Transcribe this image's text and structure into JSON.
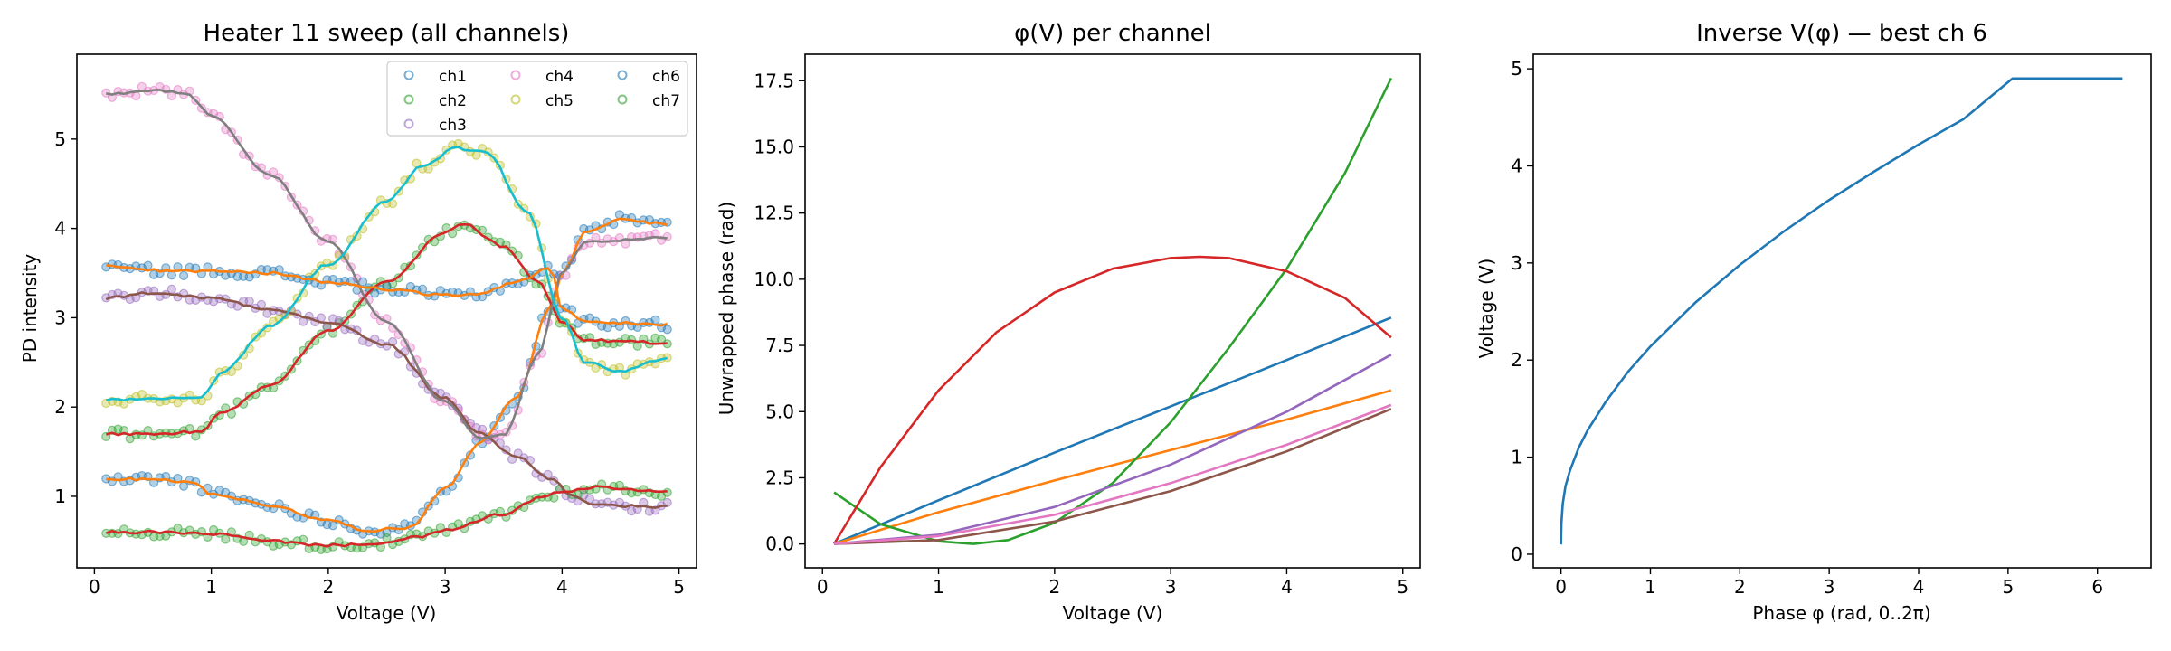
{
  "chart_data": [
    {
      "type": "scatter",
      "title": "Heater 11 sweep (all channels)",
      "xlabel": "Voltage (V)",
      "ylabel": "PD intensity",
      "xlim": [
        -0.15,
        5.15
      ],
      "ylim": [
        0.2,
        5.95
      ],
      "xticks": [
        0,
        1,
        2,
        3,
        4,
        5
      ],
      "yticks": [
        1,
        2,
        3,
        4,
        5
      ],
      "grid": false,
      "legend": {
        "position": "top-right",
        "columns": 3,
        "marker": "open-circle"
      },
      "palette": [
        "#1f77b4",
        "#ff7f0e",
        "#2ca02c",
        "#d62728",
        "#9467bd",
        "#8c564b",
        "#e377c2",
        "#7f7f7f",
        "#bcbd22",
        "#17becf"
      ],
      "x_range": [
        0.1,
        4.9
      ],
      "series": [
        {
          "name": "ch1",
          "color": "#1f77b4",
          "curve": [
            [
              0.1,
              1.18
            ],
            [
              0.5,
              1.2
            ],
            [
              0.85,
              1.15
            ],
            [
              1.0,
              1.03
            ],
            [
              1.5,
              0.9
            ],
            [
              2.0,
              0.73
            ],
            [
              2.35,
              0.62
            ],
            [
              2.7,
              0.65
            ],
            [
              3.0,
              1.1
            ],
            [
              3.3,
              1.6
            ],
            [
              3.6,
              2.1
            ],
            [
              3.9,
              3.1
            ],
            [
              4.0,
              3.5
            ],
            [
              4.2,
              3.95
            ],
            [
              4.5,
              4.1
            ],
            [
              4.9,
              4.05
            ]
          ]
        },
        {
          "name": "ch2",
          "color": "#2ca02c",
          "curve": [
            [
              0.1,
              1.7
            ],
            [
              0.5,
              1.7
            ],
            [
              0.9,
              1.72
            ],
            [
              1.1,
              1.95
            ],
            [
              1.5,
              2.25
            ],
            [
              2.0,
              2.85
            ],
            [
              2.5,
              3.4
            ],
            [
              3.0,
              3.95
            ],
            [
              3.15,
              4.05
            ],
            [
              3.5,
              3.8
            ],
            [
              3.8,
              3.4
            ],
            [
              4.0,
              2.95
            ],
            [
              4.2,
              2.75
            ],
            [
              4.9,
              2.72
            ]
          ]
        },
        {
          "name": "ch3",
          "color": "#9467bd",
          "curve": [
            [
              0.1,
              3.22
            ],
            [
              0.5,
              3.28
            ],
            [
              1.0,
              3.22
            ],
            [
              1.5,
              3.1
            ],
            [
              2.0,
              2.95
            ],
            [
              2.5,
              2.7
            ],
            [
              3.0,
              2.1
            ],
            [
              3.3,
              1.7
            ],
            [
              3.6,
              1.45
            ],
            [
              3.9,
              1.2
            ],
            [
              4.1,
              1.0
            ],
            [
              4.3,
              0.9
            ],
            [
              4.9,
              0.88
            ]
          ]
        },
        {
          "name": "ch4",
          "color": "#e377c2",
          "curve": [
            [
              0.1,
              5.5
            ],
            [
              0.5,
              5.55
            ],
            [
              0.8,
              5.5
            ],
            [
              1.0,
              5.25
            ],
            [
              1.5,
              4.6
            ],
            [
              2.0,
              3.85
            ],
            [
              2.5,
              2.95
            ],
            [
              3.0,
              2.05
            ],
            [
              3.3,
              1.65
            ],
            [
              3.5,
              1.68
            ],
            [
              3.8,
              2.6
            ],
            [
              4.0,
              3.5
            ],
            [
              4.2,
              3.85
            ],
            [
              4.9,
              3.9
            ]
          ]
        },
        {
          "name": "ch5",
          "color": "#bcbd22",
          "curve": [
            [
              0.1,
              2.08
            ],
            [
              0.5,
              2.1
            ],
            [
              0.9,
              2.1
            ],
            [
              1.1,
              2.4
            ],
            [
              1.5,
              2.9
            ],
            [
              2.0,
              3.6
            ],
            [
              2.5,
              4.3
            ],
            [
              2.8,
              4.7
            ],
            [
              3.1,
              4.9
            ],
            [
              3.35,
              4.85
            ],
            [
              3.7,
              4.2
            ],
            [
              4.0,
              3.0
            ],
            [
              4.2,
              2.5
            ],
            [
              4.5,
              2.4
            ],
            [
              4.9,
              2.55
            ]
          ]
        },
        {
          "name": "ch6",
          "color": "#1f77b4",
          "curve": [
            [
              0.1,
              3.58
            ],
            [
              0.5,
              3.53
            ],
            [
              1.0,
              3.52
            ],
            [
              1.5,
              3.5
            ],
            [
              2.0,
              3.4
            ],
            [
              2.5,
              3.32
            ],
            [
              3.0,
              3.25
            ],
            [
              3.3,
              3.27
            ],
            [
              3.6,
              3.4
            ],
            [
              3.9,
              3.55
            ],
            [
              4.0,
              3.1
            ],
            [
              4.2,
              2.95
            ],
            [
              4.9,
              2.92
            ]
          ]
        },
        {
          "name": "ch7",
          "color": "#2ca02c",
          "curve": [
            [
              0.1,
              0.6
            ],
            [
              0.5,
              0.6
            ],
            [
              1.0,
              0.58
            ],
            [
              1.5,
              0.5
            ],
            [
              2.0,
              0.45
            ],
            [
              2.5,
              0.48
            ],
            [
              2.8,
              0.55
            ],
            [
              3.0,
              0.62
            ],
            [
              3.5,
              0.8
            ],
            [
              3.8,
              0.98
            ],
            [
              4.0,
              1.05
            ],
            [
              4.3,
              1.1
            ],
            [
              4.9,
              1.05
            ]
          ]
        }
      ],
      "fit_colors": [
        "#ff7f0e",
        "#d62728",
        "#8c564b",
        "#7f7f7f",
        "#17becf",
        "#ff7f0e",
        "#d62728"
      ]
    },
    {
      "type": "line",
      "title": "φ(V) per channel",
      "xlabel": "Voltage (V)",
      "ylabel": "Unwrapped phase (rad)",
      "xlim": [
        -0.15,
        5.15
      ],
      "ylim": [
        -0.9,
        18.5
      ],
      "xticks": [
        0,
        1,
        2,
        3,
        4,
        5
      ],
      "yticks": [
        0.0,
        2.5,
        5.0,
        7.5,
        10.0,
        12.5,
        15.0,
        17.5
      ],
      "grid": false,
      "series": [
        {
          "color": "#1f77b4",
          "x": [
            0.1,
            1.0,
            2.0,
            3.0,
            4.0,
            4.9
          ],
          "y": [
            0.0,
            1.65,
            3.45,
            5.2,
            6.95,
            8.55
          ]
        },
        {
          "color": "#ff7f0e",
          "x": [
            0.1,
            1.0,
            2.0,
            3.0,
            4.0,
            4.9
          ],
          "y": [
            0.0,
            1.2,
            2.4,
            3.55,
            4.7,
            5.8
          ]
        },
        {
          "color": "#2ca02c",
          "x": [
            0.1,
            0.5,
            1.0,
            1.3,
            1.6,
            2.0,
            2.5,
            3.0,
            3.5,
            4.0,
            4.5,
            4.9
          ],
          "y": [
            1.95,
            0.75,
            0.1,
            0.0,
            0.15,
            0.8,
            2.3,
            4.6,
            7.4,
            10.4,
            14.0,
            17.6
          ]
        },
        {
          "color": "#d62728",
          "x": [
            0.1,
            0.5,
            1.0,
            1.5,
            2.0,
            2.5,
            3.0,
            3.25,
            3.5,
            4.0,
            4.5,
            4.9
          ],
          "y": [
            0.0,
            2.9,
            5.8,
            8.0,
            9.5,
            10.4,
            10.8,
            10.85,
            10.8,
            10.3,
            9.3,
            7.8
          ]
        },
        {
          "color": "#9467bd",
          "x": [
            0.1,
            1.0,
            2.0,
            3.0,
            4.0,
            4.9
          ],
          "y": [
            0.0,
            0.35,
            1.4,
            3.0,
            5.0,
            7.15
          ]
        },
        {
          "color": "#8c564b",
          "x": [
            0.1,
            1.0,
            2.0,
            3.0,
            4.0,
            4.9
          ],
          "y": [
            0.0,
            0.15,
            0.85,
            2.0,
            3.5,
            5.1
          ]
        },
        {
          "color": "#e377c2",
          "x": [
            0.1,
            1.0,
            2.0,
            3.0,
            4.0,
            4.9
          ],
          "y": [
            0.0,
            0.3,
            1.1,
            2.3,
            3.75,
            5.25
          ]
        }
      ]
    },
    {
      "type": "line",
      "title": "Inverse V(φ) — best ch 6",
      "xlabel": "Phase φ (rad, 0..2π)",
      "ylabel": "Voltage (V)",
      "xlim": [
        -0.31,
        6.6
      ],
      "ylim": [
        -0.14,
        5.15
      ],
      "xticks": [
        0,
        1,
        2,
        3,
        4,
        5,
        6
      ],
      "yticks": [
        0,
        1,
        2,
        3,
        4,
        5
      ],
      "grid": false,
      "series": [
        {
          "color": "#1f77b4",
          "x": [
            0.0,
            0.005,
            0.02,
            0.05,
            0.1,
            0.2,
            0.3,
            0.5,
            0.75,
            1.0,
            1.5,
            2.0,
            2.5,
            3.0,
            3.5,
            4.0,
            4.5,
            5.05,
            5.4,
            6.0,
            6.28
          ],
          "y": [
            0.1,
            0.32,
            0.52,
            0.7,
            0.86,
            1.1,
            1.28,
            1.57,
            1.88,
            2.14,
            2.59,
            2.98,
            3.33,
            3.65,
            3.94,
            4.22,
            4.48,
            4.9,
            4.9,
            4.9,
            4.9
          ]
        }
      ]
    }
  ]
}
